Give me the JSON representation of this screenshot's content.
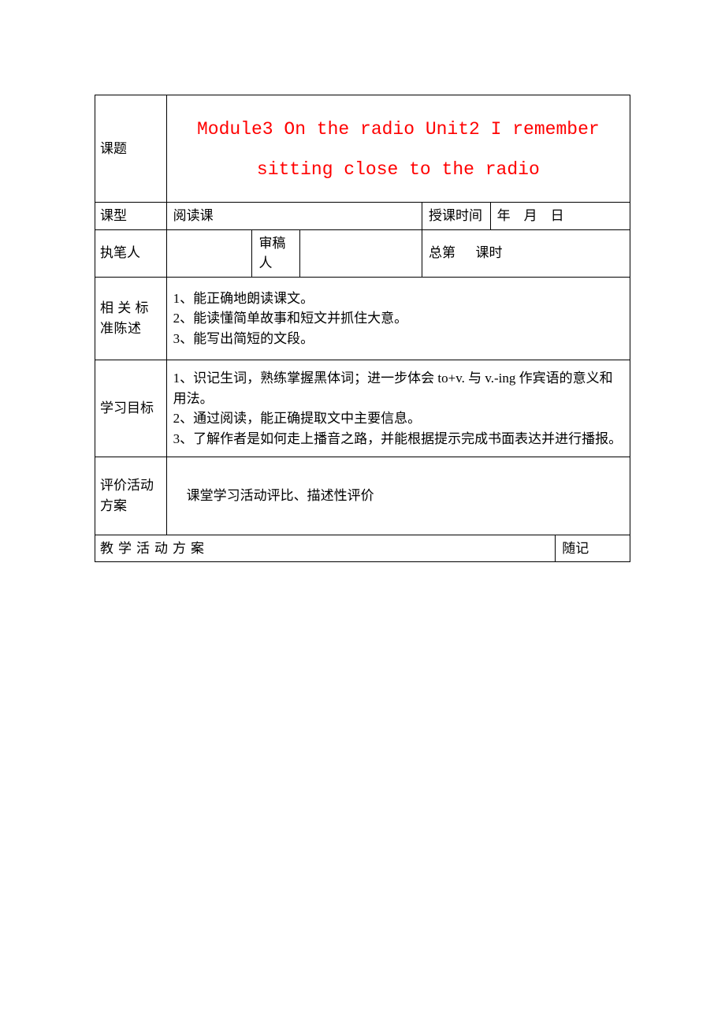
{
  "table": {
    "row1": {
      "label": "课题",
      "title": "Module3 On the radio Unit2 I remember sitting close to the radio"
    },
    "row2": {
      "label": "课型",
      "value": "阅读课",
      "time_label": "授课时间",
      "time_value": "年　月　日"
    },
    "row3": {
      "label": "执笔人",
      "writer_value": "",
      "reviewer_label": "审稿人",
      "reviewer_value": "",
      "period_label": "总第",
      "period_value": "",
      "period_suffix": "课时"
    },
    "row4": {
      "label": "相 关 标 准陈述",
      "line1": "1、能正确地朗读课文。",
      "line2": "2、能读懂简单故事和短文并抓住大意。",
      "line3": "3、能写出简短的文段。"
    },
    "row5": {
      "label": "学习目标",
      "line1": "1、识记生词，熟练掌握黑体词；进一步体会 to+v. 与 v.-ing 作宾语的意义和用法。",
      "line2": "2、通过阅读，能正确提取文中主要信息。",
      "line3": "3、了解作者是如何走上播音之路，并能根据提示完成书面表达并进行播报。"
    },
    "row6": {
      "label": "评价活动方案",
      "value": "课堂学习活动评比、描述性评价"
    },
    "row7": {
      "plan_label": "教学活动方案",
      "notes_label": "随记"
    }
  },
  "colors": {
    "title_color": "#ff0000",
    "text_color": "#000000",
    "border_color": "#000000",
    "background_color": "#ffffff"
  },
  "typography": {
    "body_font": "SimSun",
    "title_font": "Courier New",
    "body_size": 17,
    "title_size": 23
  }
}
